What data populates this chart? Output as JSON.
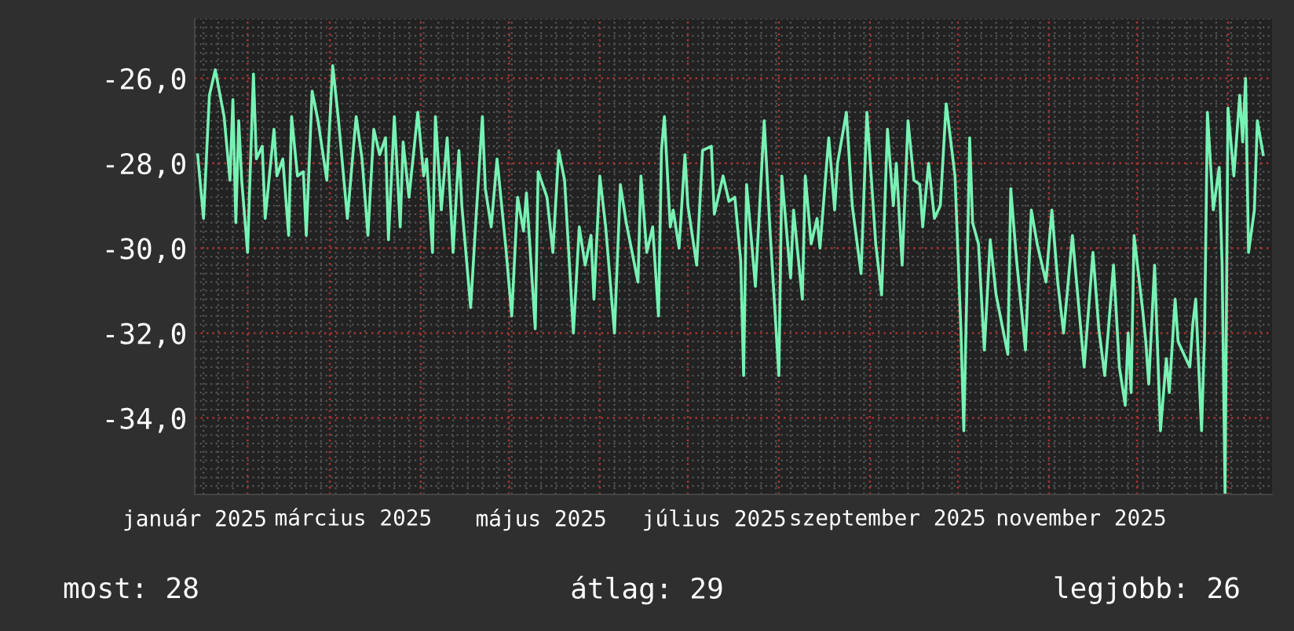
{
  "chart_data": {
    "type": "line",
    "x": [
      "2025-01-15",
      "2025-01-17",
      "2025-01-19",
      "2025-01-21",
      "2025-01-24",
      "2025-01-26",
      "2025-01-27",
      "2025-01-28",
      "2025-01-29",
      "2025-01-30",
      "2025-02-01",
      "2025-02-03",
      "2025-02-04",
      "2025-02-06",
      "2025-02-07",
      "2025-02-10",
      "2025-02-11",
      "2025-02-13",
      "2025-02-15",
      "2025-02-16",
      "2025-02-18",
      "2025-02-20",
      "2025-02-21",
      "2025-02-23",
      "2025-02-25",
      "2025-02-28",
      "2025-03-02",
      "2025-03-04",
      "2025-03-07",
      "2025-03-10",
      "2025-03-12",
      "2025-03-14",
      "2025-03-16",
      "2025-03-18",
      "2025-03-20",
      "2025-03-21",
      "2025-03-23",
      "2025-03-25",
      "2025-03-26",
      "2025-03-28",
      "2025-03-31",
      "2025-04-02",
      "2025-04-03",
      "2025-04-05",
      "2025-04-06",
      "2025-04-08",
      "2025-04-10",
      "2025-04-12",
      "2025-04-14",
      "2025-04-15",
      "2025-04-18",
      "2025-04-20",
      "2025-04-22",
      "2025-04-23",
      "2025-04-25",
      "2025-04-27",
      "2025-04-30",
      "2025-05-02",
      "2025-05-04",
      "2025-05-06",
      "2025-05-07",
      "2025-05-10",
      "2025-05-11",
      "2025-05-14",
      "2025-05-16",
      "2025-05-18",
      "2025-05-20",
      "2025-05-23",
      "2025-05-25",
      "2025-05-27",
      "2025-05-29",
      "2025-05-30",
      "2025-06-01",
      "2025-06-03",
      "2025-06-06",
      "2025-06-08",
      "2025-06-10",
      "2025-06-14",
      "2025-06-15",
      "2025-06-17",
      "2025-06-19",
      "2025-06-21",
      "2025-06-22",
      "2025-06-23",
      "2025-06-25",
      "2025-06-26",
      "2025-06-28",
      "2025-06-30",
      "2025-07-01",
      "2025-07-04",
      "2025-07-06",
      "2025-07-09",
      "2025-07-10",
      "2025-07-13",
      "2025-07-15",
      "2025-07-17",
      "2025-07-19",
      "2025-07-20",
      "2025-07-21",
      "2025-07-24",
      "2025-07-27",
      "2025-07-29",
      "2025-08-01",
      "2025-08-02",
      "2025-08-05",
      "2025-08-06",
      "2025-08-09",
      "2025-08-10",
      "2025-08-12",
      "2025-08-14",
      "2025-08-15",
      "2025-08-18",
      "2025-08-20",
      "2025-08-21",
      "2025-08-24",
      "2025-08-26",
      "2025-08-29",
      "2025-08-31",
      "2025-09-03",
      "2025-09-05",
      "2025-09-07",
      "2025-09-09",
      "2025-09-10",
      "2025-09-12",
      "2025-09-14",
      "2025-09-16",
      "2025-09-18",
      "2025-09-19",
      "2025-09-21",
      "2025-09-23",
      "2025-09-25",
      "2025-09-27",
      "2025-09-30",
      "2025-10-02",
      "2025-10-03",
      "2025-10-04",
      "2025-10-05",
      "2025-10-06",
      "2025-10-08",
      "2025-10-10",
      "2025-10-12",
      "2025-10-14",
      "2025-10-18",
      "2025-10-19",
      "2025-10-21",
      "2025-10-24",
      "2025-10-26",
      "2025-10-28",
      "2025-10-31",
      "2025-11-02",
      "2025-11-04",
      "2025-11-06",
      "2025-11-09",
      "2025-11-13",
      "2025-11-16",
      "2025-11-18",
      "2025-11-20",
      "2025-11-23",
      "2025-11-25",
      "2025-11-27",
      "2025-11-28",
      "2025-11-29",
      "2025-11-30",
      "2025-12-03",
      "2025-12-04",
      "2025-12-05",
      "2025-12-07",
      "2025-12-09",
      "2025-12-11",
      "2025-12-12",
      "2025-12-14",
      "2025-12-15",
      "2025-12-19",
      "2025-12-20",
      "2025-12-21",
      "2025-12-23",
      "2025-12-24",
      "2025-12-25",
      "2025-12-27",
      "2025-12-29",
      "2025-12-30",
      "2025-12-31",
      "2026-01-01",
      "2026-01-03",
      "2026-01-05",
      "2026-01-06",
      "2026-01-07",
      "2026-01-08",
      "2026-01-10",
      "2026-01-11",
      "2026-01-13"
    ],
    "series": [
      {
        "color": "#77f2b4",
        "values": [
          -27.8,
          -29.3,
          -26.4,
          -25.8,
          -26.9,
          -28.4,
          -26.5,
          -29.4,
          -27.0,
          -28.4,
          -30.1,
          -25.9,
          -27.9,
          -27.6,
          -29.3,
          -27.2,
          -28.3,
          -27.9,
          -29.7,
          -26.9,
          -28.3,
          -28.2,
          -29.7,
          -26.3,
          -27.0,
          -28.4,
          -25.7,
          -27.0,
          -29.3,
          -26.9,
          -27.9,
          -29.7,
          -27.2,
          -27.8,
          -27.4,
          -29.8,
          -26.9,
          -29.5,
          -27.5,
          -28.8,
          -26.8,
          -28.3,
          -27.9,
          -30.1,
          -26.9,
          -29.1,
          -27.4,
          -30.1,
          -27.7,
          -29.0,
          -31.4,
          -29.1,
          -26.9,
          -28.6,
          -29.5,
          -27.9,
          -30.0,
          -31.6,
          -28.8,
          -29.6,
          -28.7,
          -31.9,
          -28.2,
          -28.8,
          -30.1,
          -27.7,
          -28.4,
          -32.0,
          -29.5,
          -30.4,
          -29.7,
          -31.2,
          -28.3,
          -29.5,
          -32.0,
          -28.5,
          -29.4,
          -30.8,
          -28.3,
          -30.1,
          -29.5,
          -31.6,
          -27.7,
          -26.9,
          -29.5,
          -29.1,
          -30.0,
          -27.8,
          -29.0,
          -30.4,
          -27.7,
          -27.6,
          -29.2,
          -28.3,
          -28.9,
          -28.8,
          -30.3,
          -33.0,
          -28.5,
          -30.9,
          -27.0,
          -29.6,
          -33.0,
          -28.3,
          -30.7,
          -29.1,
          -31.2,
          -28.3,
          -29.9,
          -29.3,
          -30.0,
          -27.4,
          -29.1,
          -28.0,
          -26.8,
          -29.0,
          -30.6,
          -26.8,
          -29.9,
          -31.1,
          -27.2,
          -29.0,
          -28.0,
          -30.4,
          -27.0,
          -28.4,
          -28.5,
          -29.5,
          -28.0,
          -29.3,
          -29.0,
          -26.6,
          -28.3,
          -31.9,
          -34.3,
          -31.1,
          -27.4,
          -29.4,
          -29.9,
          -32.4,
          -29.8,
          -31.1,
          -32.5,
          -28.6,
          -30.3,
          -32.4,
          -29.1,
          -29.9,
          -30.8,
          -29.1,
          -30.8,
          -32.0,
          -29.7,
          -32.8,
          -30.1,
          -31.9,
          -33.0,
          -30.4,
          -32.8,
          -33.7,
          -32.0,
          -33.4,
          -29.7,
          -31.5,
          -32.2,
          -33.2,
          -30.4,
          -34.3,
          -32.6,
          -33.4,
          -31.2,
          -32.2,
          -32.8,
          -31.8,
          -31.2,
          -34.3,
          -32.1,
          -26.8,
          -29.1,
          -28.1,
          -30.4,
          -35.8,
          -26.7,
          -28.3,
          -26.4,
          -27.5,
          -26.0,
          -30.1,
          -29.1,
          -27.0,
          -27.8
        ]
      }
    ],
    "xlim": [
      "2025-01-14",
      "2026-01-16"
    ],
    "xticks": [
      {
        "value": "2025-01-14",
        "label": "január 2025"
      },
      {
        "value": "2025-02-01",
        "label": null
      },
      {
        "value": "2025-03-01",
        "label": null
      },
      {
        "value": "2025-03-09",
        "label": "március 2025"
      },
      {
        "value": "2025-04-01",
        "label": null
      },
      {
        "value": "2025-05-01",
        "label": null
      },
      {
        "value": "2025-05-12",
        "label": "május 2025"
      },
      {
        "value": "2025-06-01",
        "label": null
      },
      {
        "value": "2025-07-01",
        "label": null
      },
      {
        "value": "2025-07-10",
        "label": "július 2025"
      },
      {
        "value": "2025-08-01",
        "label": null
      },
      {
        "value": "2025-09-01",
        "label": null
      },
      {
        "value": "2025-09-07",
        "label": "szeptember 2025"
      },
      {
        "value": "2025-10-01",
        "label": null
      },
      {
        "value": "2025-11-01",
        "label": null
      },
      {
        "value": "2025-11-12",
        "label": "november 2025"
      },
      {
        "value": "2025-12-01",
        "label": null
      },
      {
        "value": "2026-01-01",
        "label": null
      }
    ],
    "ylim": [
      -35.8,
      -24.6
    ],
    "yticks": [
      {
        "value": -34,
        "label": "-34,0"
      },
      {
        "value": -32,
        "label": "-32,0"
      },
      {
        "value": -30,
        "label": "-30,0"
      },
      {
        "value": -28,
        "label": "-28,0"
      },
      {
        "value": -26,
        "label": "-26,0"
      }
    ],
    "grid": true,
    "line_style": "solid",
    "annotations": [
      "most: 28",
      "átlag: 29",
      "legjobb: 26"
    ]
  }
}
